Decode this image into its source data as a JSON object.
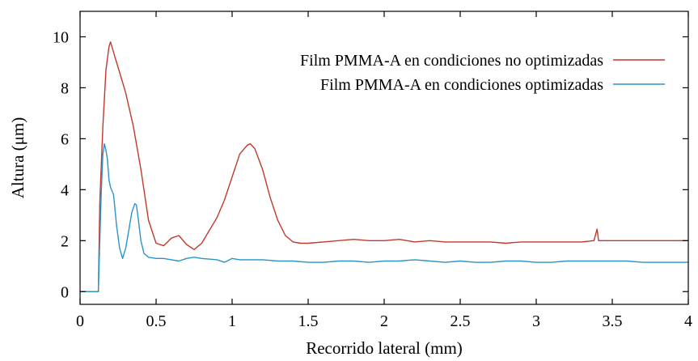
{
  "chart_data": {
    "type": "line",
    "title": "",
    "xlabel": "Recorrido lateral (mm)",
    "ylabel": "Altura (μm)",
    "xlim": [
      0,
      4
    ],
    "ylim": [
      -0.5,
      11
    ],
    "xticks": [
      0,
      0.5,
      1,
      1.5,
      2,
      2.5,
      3,
      3.5,
      4
    ],
    "xtick_labels": [
      "0",
      "0.5",
      "1",
      "1.5",
      "2",
      "2.5",
      "3",
      "3.5",
      "4"
    ],
    "yticks": [
      0,
      2,
      4,
      6,
      8,
      10
    ],
    "ytick_labels": [
      "0",
      "2",
      "4",
      "6",
      "8",
      "10"
    ],
    "grid": false,
    "legend_position": "top-right",
    "series": [
      {
        "name": "Film PMMA-A en condiciones no optimizadas",
        "color": "#c0392b",
        "x": [
          0,
          0.12,
          0.13,
          0.15,
          0.17,
          0.19,
          0.2,
          0.21,
          0.23,
          0.26,
          0.3,
          0.35,
          0.4,
          0.45,
          0.5,
          0.55,
          0.6,
          0.65,
          0.7,
          0.75,
          0.8,
          0.85,
          0.9,
          0.95,
          1.0,
          1.05,
          1.1,
          1.12,
          1.15,
          1.2,
          1.25,
          1.3,
          1.35,
          1.4,
          1.45,
          1.5,
          1.6,
          1.7,
          1.8,
          1.9,
          2.0,
          2.1,
          2.2,
          2.3,
          2.4,
          2.5,
          2.6,
          2.7,
          2.8,
          2.9,
          3.0,
          3.1,
          3.2,
          3.3,
          3.38,
          3.4,
          3.41,
          3.42,
          3.5,
          3.6,
          3.7,
          3.8,
          3.9,
          4.0
        ],
        "y": [
          0,
          0,
          3.5,
          6.5,
          8.7,
          9.6,
          9.8,
          9.6,
          9.2,
          8.6,
          7.8,
          6.5,
          4.8,
          2.8,
          1.9,
          1.8,
          2.1,
          2.2,
          1.85,
          1.65,
          1.9,
          2.4,
          2.9,
          3.6,
          4.5,
          5.4,
          5.75,
          5.8,
          5.6,
          4.8,
          3.7,
          2.8,
          2.2,
          1.95,
          1.9,
          1.9,
          1.95,
          2.0,
          2.05,
          2.0,
          2.0,
          2.05,
          1.95,
          2.0,
          1.95,
          1.95,
          1.95,
          1.95,
          1.9,
          1.95,
          1.95,
          1.95,
          1.95,
          1.95,
          2.0,
          2.45,
          2.0,
          2.0,
          2.0,
          2.0,
          2.0,
          2.0,
          2.0,
          2.0
        ]
      },
      {
        "name": "Film PMMA-A en condiciones optimizadas",
        "color": "#2a94c9",
        "x": [
          0,
          0.12,
          0.13,
          0.14,
          0.15,
          0.16,
          0.17,
          0.18,
          0.19,
          0.2,
          0.22,
          0.24,
          0.26,
          0.28,
          0.3,
          0.32,
          0.34,
          0.36,
          0.37,
          0.38,
          0.4,
          0.42,
          0.45,
          0.5,
          0.55,
          0.6,
          0.65,
          0.7,
          0.75,
          0.8,
          0.9,
          0.95,
          1.0,
          1.05,
          1.1,
          1.2,
          1.3,
          1.4,
          1.5,
          1.6,
          1.7,
          1.8,
          1.9,
          2.0,
          2.1,
          2.2,
          2.3,
          2.4,
          2.5,
          2.6,
          2.7,
          2.8,
          2.9,
          3.0,
          3.1,
          3.2,
          3.3,
          3.4,
          3.5,
          3.6,
          3.7,
          3.8,
          3.9,
          4.0
        ],
        "y": [
          0,
          0,
          2.0,
          4.0,
          5.4,
          5.8,
          5.55,
          5.2,
          4.4,
          4.1,
          3.8,
          2.6,
          1.7,
          1.3,
          1.7,
          2.4,
          3.1,
          3.45,
          3.4,
          3.0,
          2.0,
          1.5,
          1.35,
          1.3,
          1.3,
          1.25,
          1.2,
          1.3,
          1.35,
          1.3,
          1.25,
          1.15,
          1.3,
          1.25,
          1.25,
          1.25,
          1.2,
          1.2,
          1.15,
          1.15,
          1.2,
          1.2,
          1.15,
          1.2,
          1.2,
          1.25,
          1.2,
          1.15,
          1.2,
          1.15,
          1.15,
          1.2,
          1.2,
          1.15,
          1.15,
          1.2,
          1.2,
          1.2,
          1.2,
          1.2,
          1.15,
          1.15,
          1.15,
          1.15
        ]
      }
    ]
  }
}
